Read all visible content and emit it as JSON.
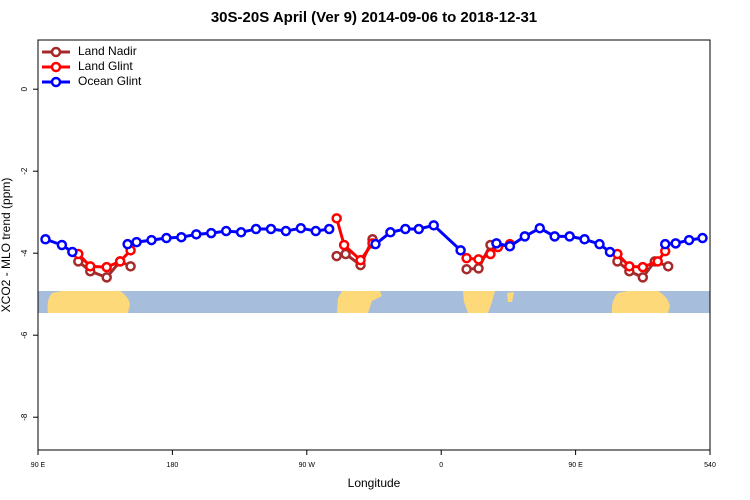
{
  "chart_data": {
    "type": "line",
    "title": "30S-20S April (Ver 9)   2014-09-06 to 2018-12-31",
    "x_label": "Longitude",
    "y_label": "XCO2 - MLO trend (ppm)",
    "xlim": [
      90,
      540
    ],
    "xticks": [
      {
        "value": 90,
        "label": "90 E"
      },
      180,
      {
        "value": 270,
        "label": "90 W"
      },
      {
        "value": 360,
        "label": "0"
      },
      {
        "value": 450,
        "label": "90 E"
      },
      540
    ],
    "ylim": [
      -8.8,
      1.2
    ],
    "yticks": [
      0,
      -2,
      -4,
      -6,
      -8
    ],
    "legend": "top-left",
    "series": [
      {
        "name": "Land Nadir",
        "color": "#a52a2a",
        "x": [
          117,
          125,
          136,
          145,
          152,
          null,
          290,
          296,
          306,
          314,
          null,
          377,
          385,
          393,
          null,
          478,
          486,
          495,
          503,
          512
        ],
        "values": [
          -4.2,
          -4.44,
          -4.59,
          -4.2,
          -4.32,
          null,
          -4.07,
          -4.02,
          -4.29,
          -3.66,
          null,
          -4.39,
          -4.37,
          -3.8,
          null,
          -4.2,
          -4.44,
          -4.59,
          -4.2,
          -4.32
        ]
      },
      {
        "name": "Land Glint",
        "color": "#ff0000",
        "x": [
          117,
          125,
          136,
          145,
          152,
          null,
          290,
          295,
          306,
          314,
          null,
          377,
          385,
          393,
          398,
          406,
          null,
          478,
          486,
          495,
          505,
          510
        ],
        "values": [
          -4.02,
          -4.32,
          -4.34,
          -4.2,
          -3.93,
          null,
          -3.15,
          -3.8,
          -4.17,
          -3.76,
          null,
          -4.12,
          -4.15,
          -4.02,
          -3.85,
          -3.78,
          null,
          -4.02,
          -4.32,
          -4.34,
          -4.2,
          -3.95
        ]
      },
      {
        "name": "Ocean Glint",
        "color": "#0000ff",
        "x": [
          95,
          106,
          113,
          null,
          150,
          156,
          166,
          176,
          186,
          196,
          206,
          216,
          226,
          236,
          246,
          256,
          266,
          276,
          285,
          null,
          316,
          326,
          336,
          345,
          355,
          373,
          null,
          397,
          406,
          416,
          426,
          436,
          446,
          456,
          466,
          473,
          null,
          510,
          517,
          526,
          535
        ],
        "values": [
          -3.66,
          -3.8,
          -3.97,
          null,
          -3.78,
          -3.73,
          -3.68,
          -3.63,
          -3.61,
          -3.54,
          -3.51,
          -3.46,
          -3.49,
          -3.41,
          -3.41,
          -3.46,
          -3.39,
          -3.46,
          -3.41,
          null,
          -3.78,
          -3.49,
          -3.41,
          -3.41,
          -3.32,
          -3.93,
          null,
          -3.76,
          -3.83,
          -3.59,
          -3.39,
          -3.59,
          -3.59,
          -3.66,
          -3.78,
          -3.97,
          null,
          -3.78,
          -3.76,
          -3.68,
          -3.63
        ]
      }
    ]
  }
}
